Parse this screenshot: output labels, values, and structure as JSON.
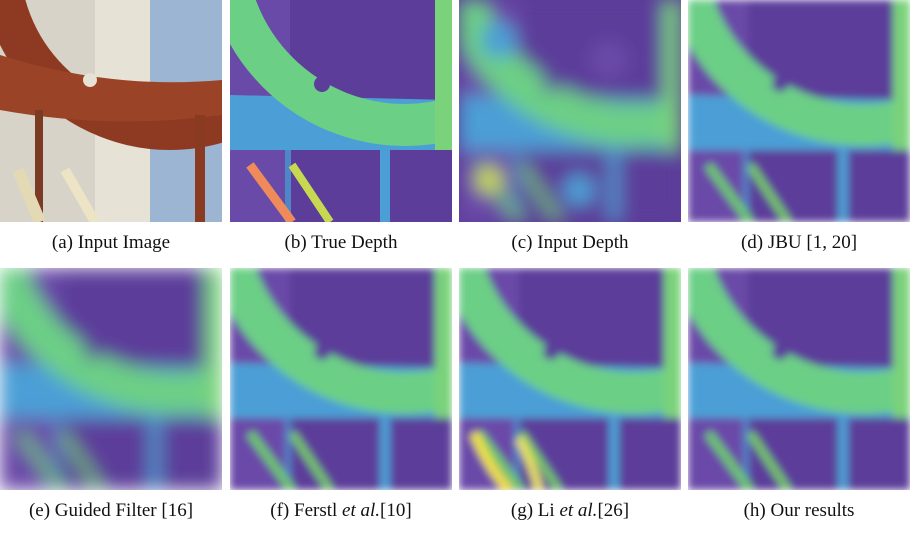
{
  "figures": [
    {
      "caption": [
        "(a) Input Image"
      ]
    },
    {
      "caption": [
        "(b) True Depth"
      ]
    },
    {
      "caption": [
        "(c) Input Depth"
      ]
    },
    {
      "caption": [
        "(d) JBU [1, 20]"
      ]
    },
    {
      "caption": [
        "(e) Guided Filter [16]"
      ]
    },
    {
      "caption": [
        "(f) Ferstl ",
        "et al.",
        "[10]"
      ]
    },
    {
      "caption": [
        "(g) Li ",
        "et al.",
        "[26]"
      ]
    },
    {
      "caption": [
        "(h) Our results"
      ]
    }
  ]
}
